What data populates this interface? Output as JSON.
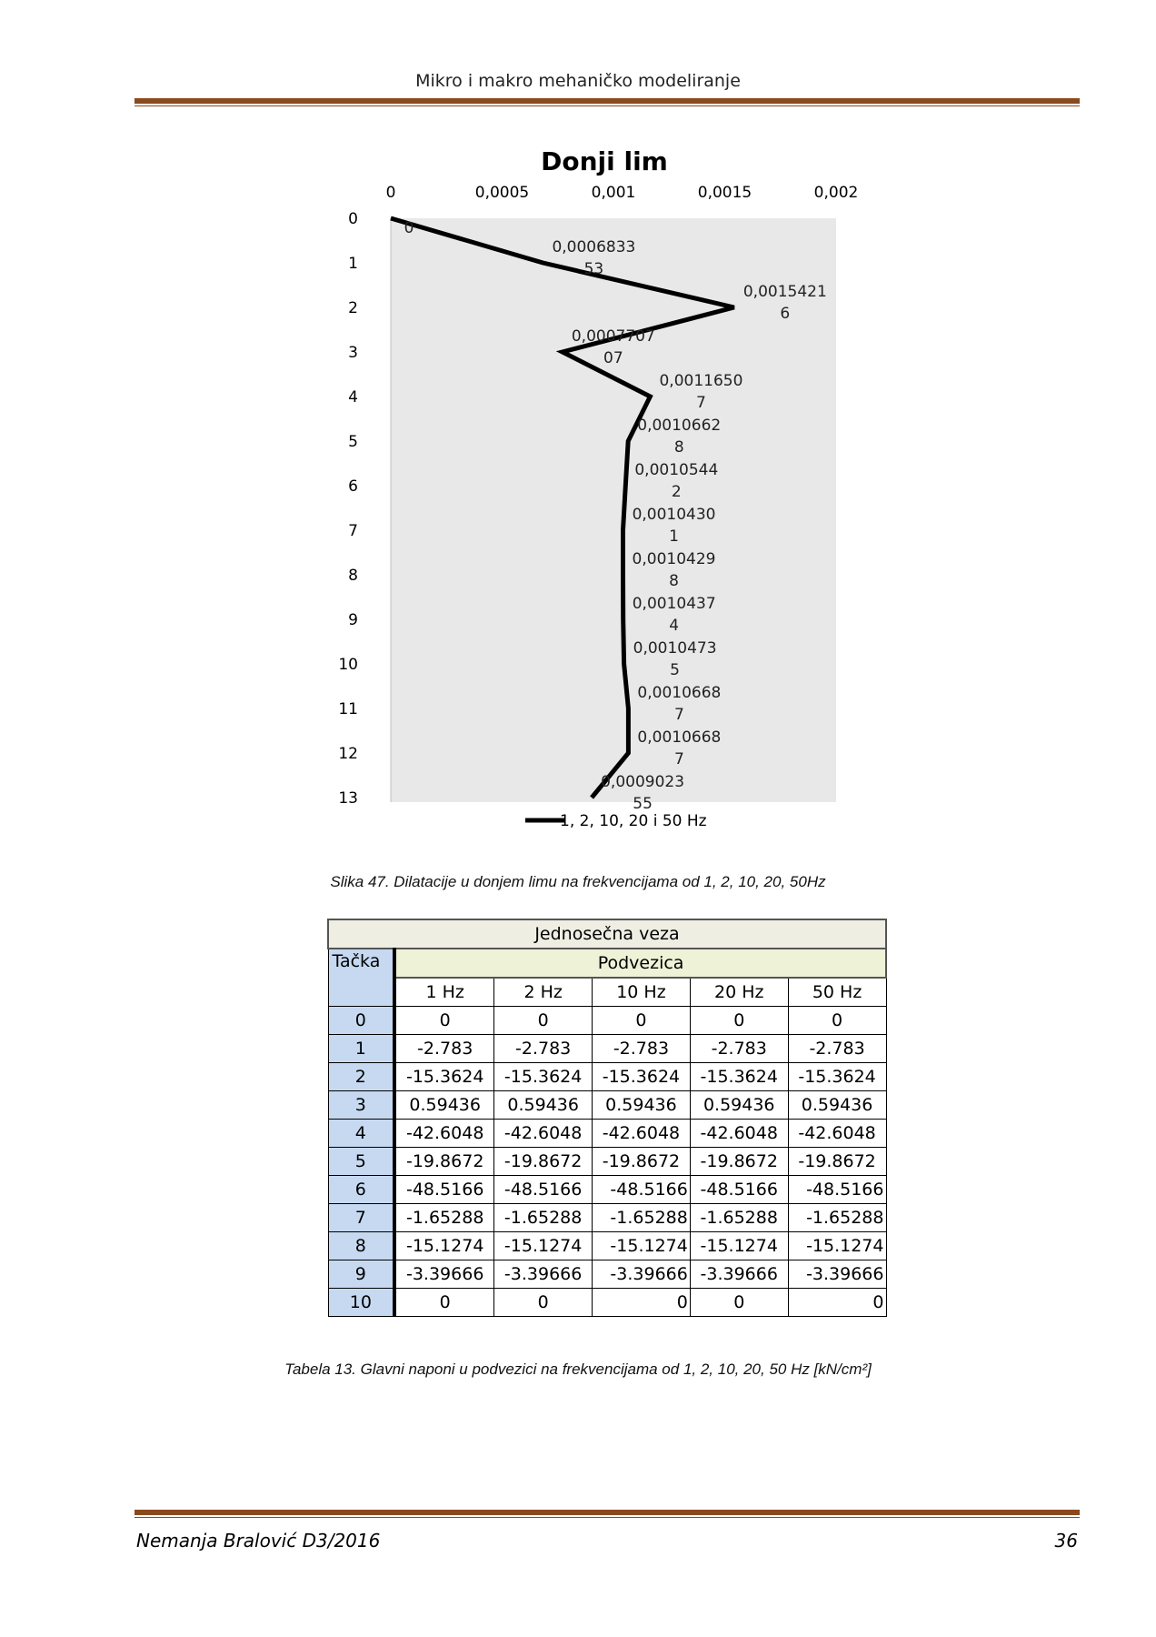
{
  "header": {
    "title": "Mikro i makro mehaničko modeliranje"
  },
  "chart_data": {
    "type": "line",
    "title": "Donji lim",
    "x_axis_position": "top",
    "x_ticks": [
      "0",
      "0,0005",
      "0,001",
      "0,0015",
      "0,002"
    ],
    "xlim": [
      0,
      0.002
    ],
    "y_ticks": [
      "0",
      "1",
      "2",
      "3",
      "4",
      "5",
      "6",
      "7",
      "8",
      "9",
      "10",
      "11",
      "12",
      "13"
    ],
    "ylim": [
      0,
      13
    ],
    "y_inverted": true,
    "grid": false,
    "legend_position": "bottom",
    "series": [
      {
        "name": "1, 2, 10, 20 i 50 Hz",
        "color": "#000000",
        "points": [
          {
            "y": 0,
            "x": 0,
            "label_line1": "0",
            "label_line2": ""
          },
          {
            "y": 1,
            "x": 0.000683353,
            "label_line1": "0,0006833",
            "label_line2": "53"
          },
          {
            "y": 2,
            "x": 0.00154216,
            "label_line1": "0,0015421",
            "label_line2": "6"
          },
          {
            "y": 3,
            "x": 0.000770707,
            "label_line1": "0,0007707",
            "label_line2": "07"
          },
          {
            "y": 4,
            "x": 0.00116507,
            "label_line1": "0,0011650",
            "label_line2": "7"
          },
          {
            "y": 5,
            "x": 0.00106628,
            "label_line1": "0,0010662",
            "label_line2": "8"
          },
          {
            "y": 6,
            "x": 0.00105442,
            "label_line1": "0,0010544",
            "label_line2": "2"
          },
          {
            "y": 7,
            "x": 0.00104301,
            "label_line1": "0,0010430",
            "label_line2": "1"
          },
          {
            "y": 8,
            "x": 0.00104298,
            "label_line1": "0,0010429",
            "label_line2": "8"
          },
          {
            "y": 9,
            "x": 0.00104374,
            "label_line1": "0,0010437",
            "label_line2": "4"
          },
          {
            "y": 10,
            "x": 0.00104735,
            "label_line1": "0,0010473",
            "label_line2": "5"
          },
          {
            "y": 11,
            "x": 0.00106687,
            "label_line1": "0,0010668",
            "label_line2": "7"
          },
          {
            "y": 12,
            "x": 0.00106687,
            "label_line1": "0,0010668",
            "label_line2": "7"
          },
          {
            "y": 13,
            "x": 0.00090235,
            "label_line1": "0,0009023",
            "label_line2": "55"
          }
        ]
      }
    ]
  },
  "figure_caption": "Slika 47. Dilatacije u donjem limu na frekvencijama od 1, 2, 10, 20, 50Hz",
  "table": {
    "group_header": "Jednosečna veza",
    "row_header": "Tačka",
    "sub_header": "Podvezica",
    "columns": [
      "1 Hz",
      "2 Hz",
      "10 Hz",
      "20 Hz",
      "50 Hz"
    ],
    "rows": [
      {
        "idx": "0",
        "cells": [
          "0",
          "0",
          "0",
          "0",
          "0"
        ]
      },
      {
        "idx": "1",
        "cells": [
          "-2.783",
          "-2.783",
          "-2.783",
          "-2.783",
          "-2.783"
        ]
      },
      {
        "idx": "2",
        "cells": [
          "-15.3624",
          "-15.3624",
          "-15.3624",
          "-15.3624",
          "-15.3624"
        ]
      },
      {
        "idx": "3",
        "cells": [
          "0.59436",
          "0.59436",
          "0.59436",
          "0.59436",
          "0.59436"
        ]
      },
      {
        "idx": "4",
        "cells": [
          "-42.6048",
          "-42.6048",
          "-42.6048",
          "-42.6048",
          "-42.6048"
        ]
      },
      {
        "idx": "5",
        "cells": [
          "-19.8672",
          "-19.8672",
          "-19.8672",
          "-19.8672",
          "-19.8672"
        ]
      },
      {
        "idx": "6",
        "cells": [
          "-48.5166",
          "-48.5166",
          "-48.5166",
          "-48.5166",
          "-48.5166"
        ]
      },
      {
        "idx": "7",
        "cells": [
          "-1.65288",
          "-1.65288",
          "-1.65288",
          "-1.65288",
          "-1.65288"
        ]
      },
      {
        "idx": "8",
        "cells": [
          "-15.1274",
          "-15.1274",
          "-15.1274",
          "-15.1274",
          "-15.1274"
        ]
      },
      {
        "idx": "9",
        "cells": [
          "-3.39666",
          "-3.39666",
          "-3.39666",
          "-3.39666",
          "-3.39666"
        ]
      },
      {
        "idx": "10",
        "cells": [
          "0",
          "0",
          "0",
          "0",
          "0"
        ]
      }
    ]
  },
  "table_caption": "Tabela 13. Glavni naponi u podvezici na frekvencijama od 1, 2, 10, 20, 50 Hz  [kN/cm²]",
  "footer": {
    "author": "Nemanja Bralović D3/2016",
    "page": "36"
  }
}
